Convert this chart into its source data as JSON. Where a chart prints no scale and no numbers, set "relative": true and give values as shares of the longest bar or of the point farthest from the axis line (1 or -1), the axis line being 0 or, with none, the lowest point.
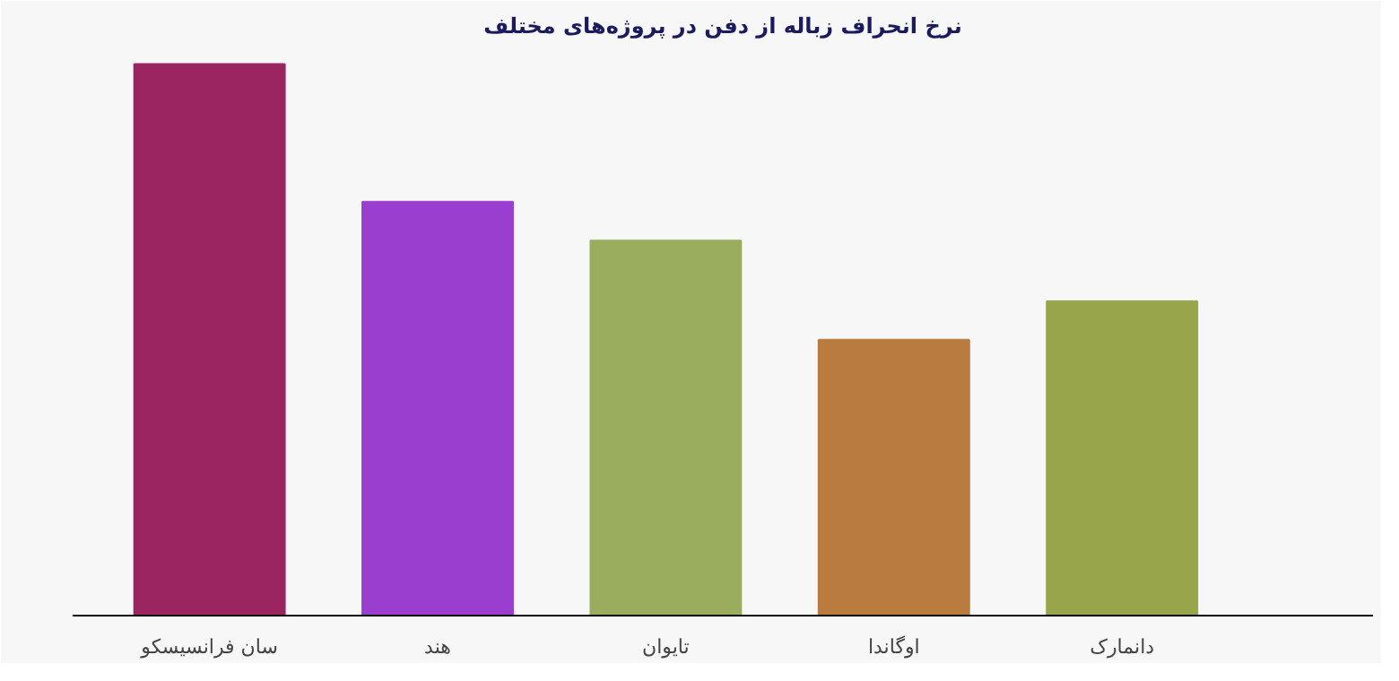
{
  "chart_data": {
    "type": "bar",
    "title": "نرخ انحراف زباله از دفن در پروژه‌های مختلف",
    "categories": [
      "سان فرانسیسکو",
      "هند",
      "تایوان",
      "اوگاندا",
      "دانمارک"
    ],
    "values": [
      1,
      0.75,
      0.68,
      0.5,
      0.57
    ],
    "colors": [
      "#9a2560",
      "#9a3ed0",
      "#9aad5e",
      "#b97c3e",
      "#98a54a"
    ],
    "relative": true
  }
}
